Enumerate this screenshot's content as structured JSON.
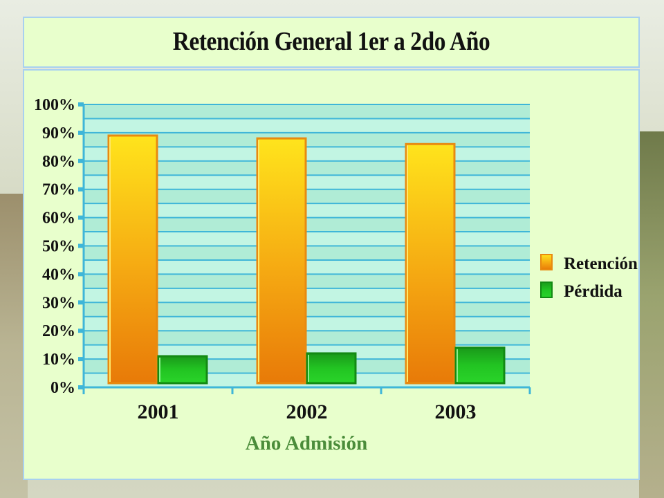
{
  "chart_data": {
    "type": "bar",
    "title": "Retención General 1er a 2do Año",
    "xlabel": "Año Admisión",
    "ylabel": "",
    "categories": [
      "2001",
      "2002",
      "2003"
    ],
    "series": [
      {
        "name": "Retención",
        "values": [
          89,
          88,
          86
        ],
        "color": "#f5a312"
      },
      {
        "name": "Pérdida",
        "values": [
          11,
          12,
          14
        ],
        "color": "#1fc21f"
      }
    ],
    "ylim": [
      0,
      100
    ],
    "yticks": [
      "0%",
      "10%",
      "20%",
      "30%",
      "40%",
      "50%",
      "60%",
      "70%",
      "80%",
      "90%",
      "100%"
    ],
    "grid": true,
    "legend_position": "right"
  }
}
